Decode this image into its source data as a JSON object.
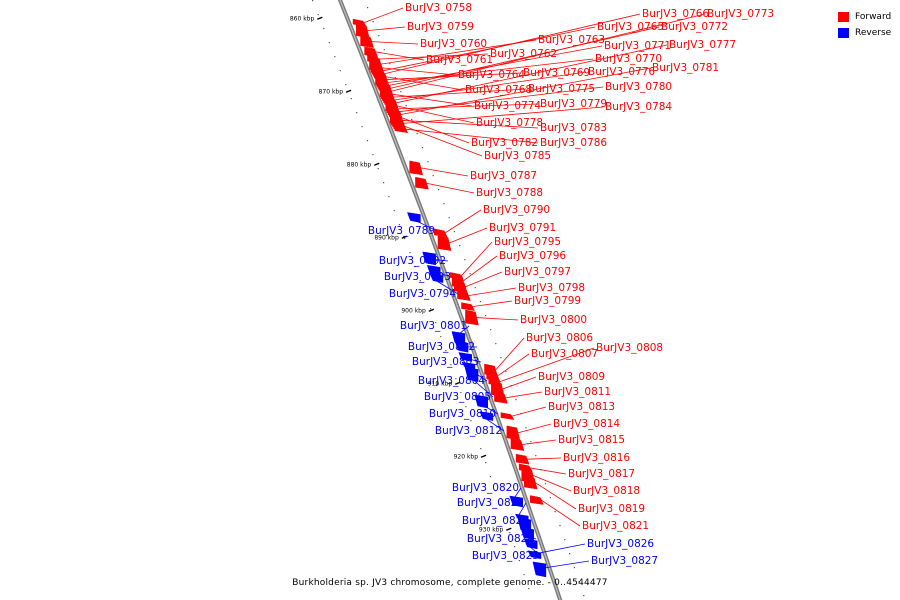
{
  "legend": {
    "forward_label": "Forward",
    "reverse_label": "Reverse",
    "forward_color": "#ff0000",
    "reverse_color": "#0000ff"
  },
  "footer": "Burkholderia sp. JV3 chromosome, complete genome. - 0..4544477",
  "axis": {
    "ticks": [
      {
        "label": "860 kbp",
        "kbp": 860
      },
      {
        "label": "870 kbp",
        "kbp": 870
      },
      {
        "label": "880 kbp",
        "kbp": 880
      },
      {
        "label": "890 kbp",
        "kbp": 890
      },
      {
        "label": "900 kbp",
        "kbp": 900
      },
      {
        "label": "910 kbp",
        "kbp": 910
      },
      {
        "label": "920 kbp",
        "kbp": 920
      },
      {
        "label": "930 kbp",
        "kbp": 930
      }
    ]
  },
  "genes": [
    {
      "name": "BurJV3_0758",
      "strand": "forward",
      "kbp": 860.6
    },
    {
      "name": "BurJV3_0759",
      "strand": "forward",
      "kbp": 861.7
    },
    {
      "name": "BurJV3_0760",
      "strand": "forward",
      "kbp": 863.2
    },
    {
      "name": "BurJV3_0761",
      "strand": "forward",
      "kbp": 864.6
    },
    {
      "name": "BurJV3_0762",
      "strand": "forward",
      "kbp": 865.6
    },
    {
      "name": "BurJV3_0763",
      "strand": "forward",
      "kbp": 866.3
    },
    {
      "name": "BurJV3_0764",
      "strand": "forward",
      "kbp": 866.8
    },
    {
      "name": "BurJV3_0765",
      "strand": "forward",
      "kbp": 867.2
    },
    {
      "name": "BurJV3_0766",
      "strand": "forward",
      "kbp": 867.6
    },
    {
      "name": "BurJV3_0768",
      "strand": "forward",
      "kbp": 868.0
    },
    {
      "name": "BurJV3_0769",
      "strand": "forward",
      "kbp": 868.4
    },
    {
      "name": "BurJV3_0770",
      "strand": "forward",
      "kbp": 868.8
    },
    {
      "name": "BurJV3_0771",
      "strand": "forward",
      "kbp": 869.2
    },
    {
      "name": "BurJV3_0772",
      "strand": "forward",
      "kbp": 869.6
    },
    {
      "name": "BurJV3_0773",
      "strand": "forward",
      "kbp": 870.0
    },
    {
      "name": "BurJV3_0774",
      "strand": "forward",
      "kbp": 870.4
    },
    {
      "name": "BurJV3_0775",
      "strand": "forward",
      "kbp": 870.8
    },
    {
      "name": "BurJV3_0776",
      "strand": "forward",
      "kbp": 871.2
    },
    {
      "name": "BurJV3_0777",
      "strand": "forward",
      "kbp": 871.6
    },
    {
      "name": "BurJV3_0778",
      "strand": "forward",
      "kbp": 872.0
    },
    {
      "name": "BurJV3_0779",
      "strand": "forward",
      "kbp": 872.4
    },
    {
      "name": "BurJV3_0780",
      "strand": "forward",
      "kbp": 872.8
    },
    {
      "name": "BurJV3_0781",
      "strand": "forward",
      "kbp": 873.2
    },
    {
      "name": "BurJV3_0782",
      "strand": "forward",
      "kbp": 873.6
    },
    {
      "name": "BurJV3_0783",
      "strand": "forward",
      "kbp": 874.0
    },
    {
      "name": "BurJV3_0784",
      "strand": "forward",
      "kbp": 874.4
    },
    {
      "name": "BurJV3_0785",
      "strand": "forward",
      "kbp": 874.8
    },
    {
      "name": "BurJV3_0786",
      "strand": "forward",
      "kbp": 875.2
    },
    {
      "name": "BurJV3_0787",
      "strand": "forward",
      "kbp": 880.5
    },
    {
      "name": "BurJV3_0788",
      "strand": "forward",
      "kbp": 882.6
    },
    {
      "name": "BurJV3_0789",
      "strand": "reverse",
      "kbp": 887.3
    },
    {
      "name": "BurJV3_0790",
      "strand": "forward",
      "kbp": 889.4
    },
    {
      "name": "BurJV3_0791",
      "strand": "forward",
      "kbp": 890.8
    },
    {
      "name": "BurJV3_0792",
      "strand": "reverse",
      "kbp": 892.9
    },
    {
      "name": "BurJV3_0793",
      "strand": "reverse",
      "kbp": 894.6
    },
    {
      "name": "BurJV3_0794",
      "strand": "reverse",
      "kbp": 895.6
    },
    {
      "name": "BurJV3_0795",
      "strand": "forward",
      "kbp": 895.3
    },
    {
      "name": "BurJV3_0796",
      "strand": "forward",
      "kbp": 896.0
    },
    {
      "name": "BurJV3_0797",
      "strand": "forward",
      "kbp": 896.8
    },
    {
      "name": "BurJV3_0798",
      "strand": "forward",
      "kbp": 898.0
    },
    {
      "name": "BurJV3_0799",
      "strand": "forward",
      "kbp": 899.5
    },
    {
      "name": "BurJV3_0800",
      "strand": "forward",
      "kbp": 901.0
    },
    {
      "name": "BurJV3_0801",
      "strand": "reverse",
      "kbp": 903.8
    },
    {
      "name": "BurJV3_0802",
      "strand": "reverse",
      "kbp": 905.0
    },
    {
      "name": "BurJV3_0803",
      "strand": "reverse",
      "kbp": 906.4
    },
    {
      "name": "BurJV3_0804",
      "strand": "reverse",
      "kbp": 907.6
    },
    {
      "name": "BurJV3_0805",
      "strand": "reverse",
      "kbp": 908.8
    },
    {
      "name": "BurJV3_0806",
      "strand": "forward",
      "kbp": 908.2
    },
    {
      "name": "BurJV3_0807",
      "strand": "forward",
      "kbp": 909.0
    },
    {
      "name": "BurJV3_0808",
      "strand": "forward",
      "kbp": 909.8
    },
    {
      "name": "BurJV3_0809",
      "strand": "forward",
      "kbp": 910.8
    },
    {
      "name": "BurJV3_0810",
      "strand": "reverse",
      "kbp": 912.5
    },
    {
      "name": "BurJV3_0811",
      "strand": "forward",
      "kbp": 912.0
    },
    {
      "name": "BurJV3_0812",
      "strand": "reverse",
      "kbp": 914.5
    },
    {
      "name": "BurJV3_0813",
      "strand": "forward",
      "kbp": 914.5
    },
    {
      "name": "BurJV3_0814",
      "strand": "forward",
      "kbp": 916.8
    },
    {
      "name": "BurJV3_0815",
      "strand": "forward",
      "kbp": 918.4
    },
    {
      "name": "BurJV3_0816",
      "strand": "forward",
      "kbp": 920.4
    },
    {
      "name": "BurJV3_0817",
      "strand": "forward",
      "kbp": 921.6
    },
    {
      "name": "BurJV3_0818",
      "strand": "forward",
      "kbp": 922.6
    },
    {
      "name": "BurJV3_0819",
      "strand": "forward",
      "kbp": 923.6
    },
    {
      "name": "BurJV3_0820",
      "strand": "reverse",
      "kbp": 926.2
    },
    {
      "name": "BurJV3_0821",
      "strand": "forward",
      "kbp": 926.0
    },
    {
      "name": "BurJV3_0822",
      "strand": "reverse",
      "kbp": 928.4
    },
    {
      "name": "BurJV3_0823",
      "strand": "reverse",
      "kbp": 929.4
    },
    {
      "name": "BurJV3_0824",
      "strand": "reverse",
      "kbp": 930.6
    },
    {
      "name": "BurJV3_0825",
      "strand": "reverse",
      "kbp": 932.0
    },
    {
      "name": "BurJV3_0826",
      "strand": "reverse",
      "kbp": 933.5
    },
    {
      "name": "BurJV3_0827",
      "strand": "reverse",
      "kbp": 935.5
    }
  ]
}
